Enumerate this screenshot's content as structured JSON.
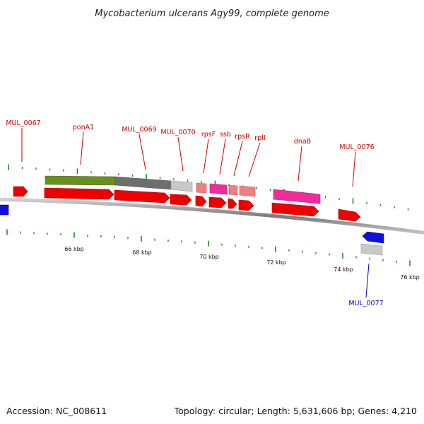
{
  "header": {
    "title": "Mycobacterium ulcerans Agy99, complete genome"
  },
  "footer": {
    "accession": "Accession: NC_008611",
    "summary": "Topology: circular; Length: 5,631,606 bp; Genes: 4,210"
  },
  "scale": {
    "ticks": [
      "66 kbp",
      "68 kbp",
      "70 kbp",
      "72 kbp",
      "74 kbp",
      "76 kbp"
    ]
  },
  "colors": {
    "forward_gene": "#ee0000",
    "reverse_gene": "#1010dd",
    "label_forward": "#cc0000",
    "label_reverse": "#0000cc",
    "backbone": "#8a8a8a",
    "tick": "#228822",
    "cog_green": "#6b8e23",
    "cog_gray": "#6e6e6e",
    "cog_light_gray": "#c8c8c8",
    "cog_salmon": "#f08080",
    "cog_pink": "#ee2d9a"
  },
  "gene_labels": [
    {
      "text": "MUL_0067",
      "strand": "forward"
    },
    {
      "text": "ponA1",
      "strand": "forward"
    },
    {
      "text": "MUL_0069",
      "strand": "forward"
    },
    {
      "text": "MUL_0070",
      "strand": "forward"
    },
    {
      "text": "rpsF",
      "strand": "forward"
    },
    {
      "text": "ssb",
      "strand": "forward"
    },
    {
      "text": "rpsR",
      "strand": "forward"
    },
    {
      "text": "rplI",
      "strand": "forward"
    },
    {
      "text": "dnaB",
      "strand": "forward"
    },
    {
      "text": "MUL_0076",
      "strand": "forward"
    },
    {
      "text": "MUL_0077",
      "strand": "reverse"
    }
  ]
}
